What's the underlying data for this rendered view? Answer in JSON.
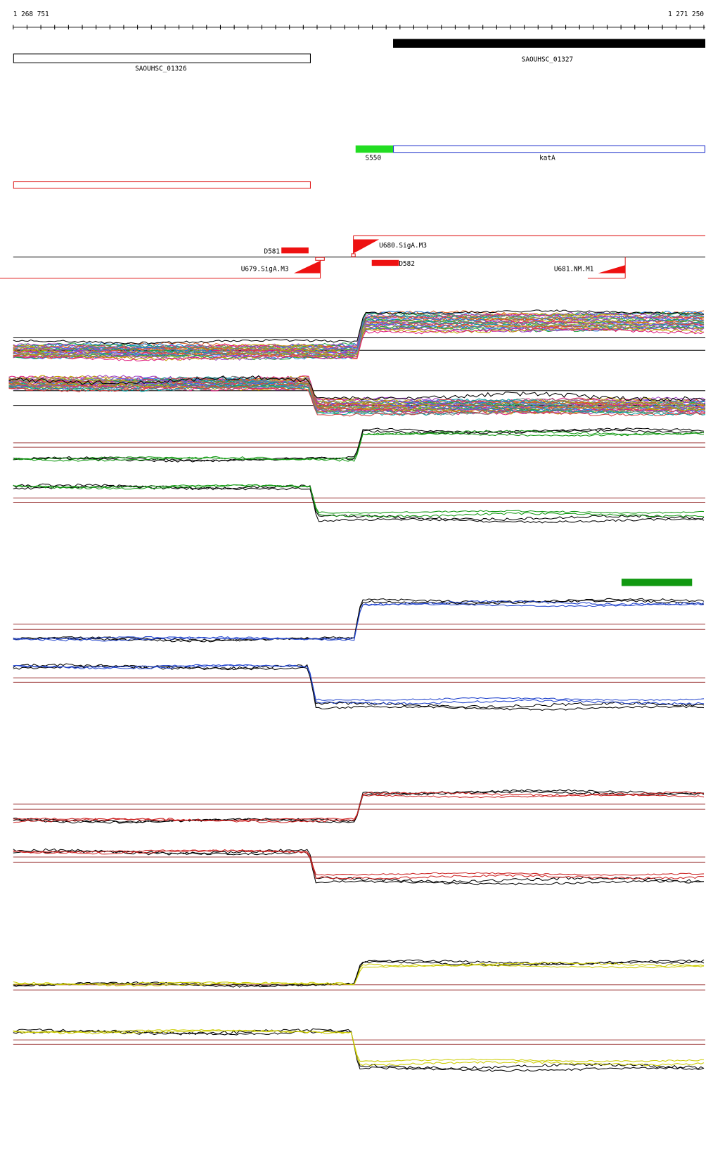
{
  "ruler": {
    "start": "1 268 751",
    "end": "1 271 250"
  },
  "genes": [
    "SAOUHSC_01326",
    "SAOUHSC_01327"
  ],
  "features": [
    "S550",
    "katA"
  ],
  "segments": [
    "D581",
    "U680.SigA.M3",
    "U679.SigA.M3",
    "D582",
    "U681.NM.M1"
  ]
}
